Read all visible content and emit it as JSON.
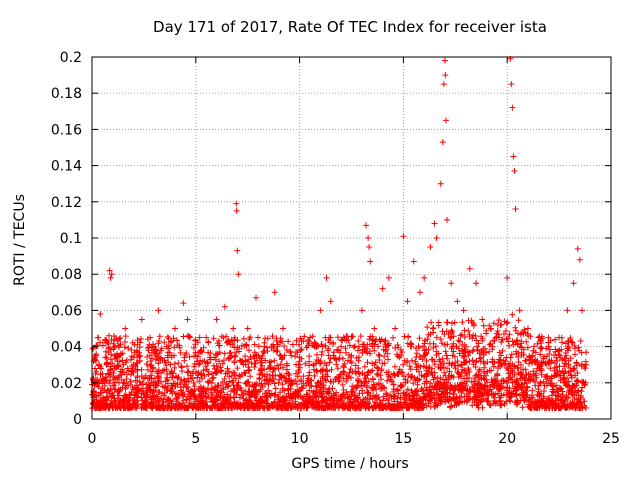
{
  "chart_data": {
    "type": "scatter",
    "title": "Day 171 of 2017, Rate Of TEC Index for receiver ista",
    "xlabel": "GPS time / hours",
    "ylabel": "ROTI / TECUs",
    "xlim": [
      0,
      25
    ],
    "ylim": [
      0,
      0.2
    ],
    "xticks": [
      0,
      5,
      10,
      15,
      20,
      25
    ],
    "xtick_labels": [
      "0",
      "5",
      "10",
      "15",
      "20",
      "25"
    ],
    "yticks": [
      0,
      0.02,
      0.04,
      0.06,
      0.08,
      0.1,
      0.12,
      0.14,
      0.16,
      0.18,
      0.2
    ],
    "ytick_labels": [
      "0",
      "0.02",
      "0.04",
      "0.06",
      "0.08",
      "0.1",
      "0.12",
      "0.14",
      "0.16",
      "0.18",
      "0.2"
    ],
    "grid": true,
    "marker": "+",
    "color": "#ff0000",
    "series": [
      {
        "name": "ROTI",
        "points": [
          [
            0.1,
            0.015
          ],
          [
            0.2,
            0.035
          ],
          [
            0.3,
            0.045
          ],
          [
            0.4,
            0.058
          ],
          [
            0.5,
            0.025
          ],
          [
            0.7,
            0.03
          ],
          [
            0.85,
            0.082
          ],
          [
            0.9,
            0.078
          ],
          [
            0.95,
            0.08
          ],
          [
            1.1,
            0.04
          ],
          [
            1.3,
            0.02
          ],
          [
            1.6,
            0.05
          ],
          [
            2.0,
            0.03
          ],
          [
            2.4,
            0.055
          ],
          [
            2.8,
            0.045
          ],
          [
            3.2,
            0.06
          ],
          [
            3.6,
            0.04
          ],
          [
            4.0,
            0.05
          ],
          [
            4.4,
            0.064
          ],
          [
            4.6,
            0.055
          ],
          [
            5.0,
            0.035
          ],
          [
            5.5,
            0.045
          ],
          [
            6.0,
            0.055
          ],
          [
            6.4,
            0.062
          ],
          [
            6.8,
            0.05
          ],
          [
            6.95,
            0.119
          ],
          [
            6.97,
            0.115
          ],
          [
            7.0,
            0.093
          ],
          [
            7.05,
            0.08
          ],
          [
            7.5,
            0.05
          ],
          [
            7.9,
            0.067
          ],
          [
            8.3,
            0.04
          ],
          [
            8.8,
            0.07
          ],
          [
            9.2,
            0.05
          ],
          [
            9.6,
            0.035
          ],
          [
            10.0,
            0.03
          ],
          [
            10.5,
            0.045
          ],
          [
            11.0,
            0.06
          ],
          [
            11.3,
            0.078
          ],
          [
            11.5,
            0.065
          ],
          [
            12.0,
            0.04
          ],
          [
            12.5,
            0.035
          ],
          [
            13.0,
            0.06
          ],
          [
            13.2,
            0.107
          ],
          [
            13.3,
            0.1
          ],
          [
            13.35,
            0.095
          ],
          [
            13.4,
            0.087
          ],
          [
            13.6,
            0.05
          ],
          [
            14.0,
            0.072
          ],
          [
            14.3,
            0.078
          ],
          [
            14.6,
            0.05
          ],
          [
            15.0,
            0.101
          ],
          [
            15.2,
            0.065
          ],
          [
            15.5,
            0.087
          ],
          [
            15.8,
            0.07
          ],
          [
            16.0,
            0.078
          ],
          [
            16.3,
            0.095
          ],
          [
            16.5,
            0.108
          ],
          [
            16.6,
            0.1
          ],
          [
            16.8,
            0.13
          ],
          [
            16.9,
            0.153
          ],
          [
            16.95,
            0.185
          ],
          [
            17.0,
            0.198
          ],
          [
            17.02,
            0.19
          ],
          [
            17.05,
            0.165
          ],
          [
            17.1,
            0.11
          ],
          [
            17.3,
            0.075
          ],
          [
            17.6,
            0.065
          ],
          [
            17.9,
            0.06
          ],
          [
            18.2,
            0.083
          ],
          [
            18.5,
            0.075
          ],
          [
            18.8,
            0.055
          ],
          [
            19.2,
            0.05
          ],
          [
            19.6,
            0.045
          ],
          [
            20.0,
            0.078
          ],
          [
            20.15,
            0.199
          ],
          [
            20.2,
            0.185
          ],
          [
            20.25,
            0.172
          ],
          [
            20.3,
            0.145
          ],
          [
            20.35,
            0.137
          ],
          [
            20.4,
            0.116
          ],
          [
            20.6,
            0.06
          ],
          [
            21.0,
            0.05
          ],
          [
            21.5,
            0.045
          ],
          [
            22.0,
            0.04
          ],
          [
            22.5,
            0.045
          ],
          [
            22.9,
            0.06
          ],
          [
            23.2,
            0.075
          ],
          [
            23.4,
            0.094
          ],
          [
            23.5,
            0.088
          ],
          [
            23.6,
            0.06
          ],
          [
            23.8,
            0.03
          ]
        ]
      }
    ]
  }
}
